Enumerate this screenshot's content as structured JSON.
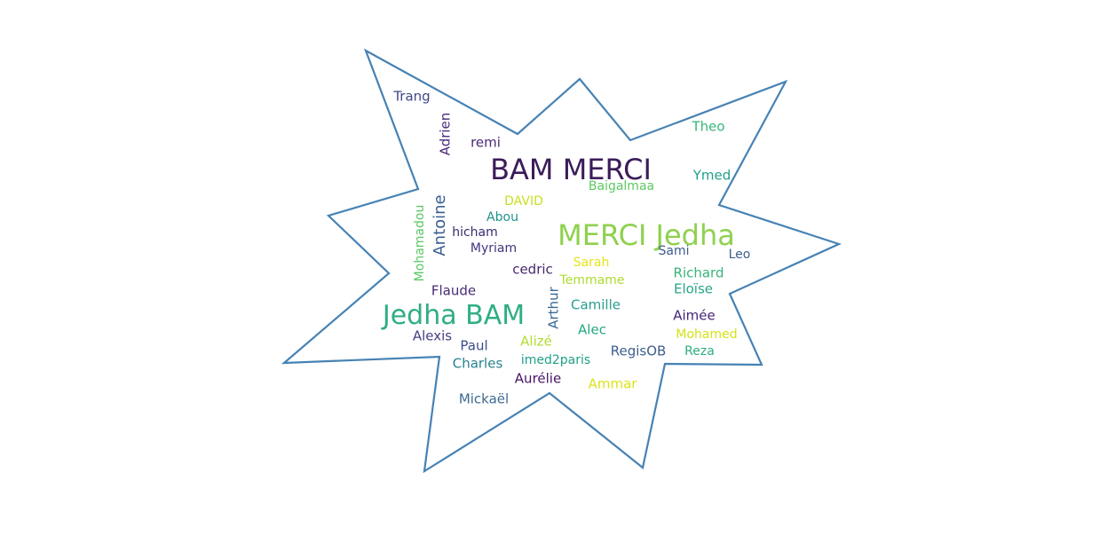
{
  "cloud": {
    "outline_color": "#4682b4",
    "words": [
      {
        "text": "MERCI Jedha",
        "color": "#8fd14f"
      },
      {
        "text": "BAM MERCI",
        "color": "#3b1c5a"
      },
      {
        "text": "Jedha BAM",
        "color": "#2fae83"
      },
      {
        "text": "Antoine",
        "color": "#3a5f8f"
      },
      {
        "text": "Adrien",
        "color": "#4a2a7a"
      },
      {
        "text": "Mohamadou",
        "color": "#5ac864"
      },
      {
        "text": "Arthur",
        "color": "#3b6a94"
      },
      {
        "text": "Trang",
        "color": "#3e4a89"
      },
      {
        "text": "remi",
        "color": "#482878"
      },
      {
        "text": "Theo",
        "color": "#35b779"
      },
      {
        "text": "Ymed",
        "color": "#1f9e89"
      },
      {
        "text": "Baigalmaa",
        "color": "#5ec962"
      },
      {
        "text": "DAVID",
        "color": "#c8e020"
      },
      {
        "text": "Abou",
        "color": "#21918c"
      },
      {
        "text": "hicham",
        "color": "#3b2a6e"
      },
      {
        "text": "Myriam",
        "color": "#44347e"
      },
      {
        "text": "Sami",
        "color": "#3b5b8c"
      },
      {
        "text": "Leo",
        "color": "#3c5f8f"
      },
      {
        "text": "cedric",
        "color": "#46276f"
      },
      {
        "text": "Sarah",
        "color": "#e5e419"
      },
      {
        "text": "Temmame",
        "color": "#addc30"
      },
      {
        "text": "Richard",
        "color": "#3ab37a"
      },
      {
        "text": "Eloïse",
        "color": "#28a486"
      },
      {
        "text": "Flaude",
        "color": "#482b76"
      },
      {
        "text": "Camille",
        "color": "#2a9d8f"
      },
      {
        "text": "Aimée",
        "color": "#45237a"
      },
      {
        "text": "Alexis",
        "color": "#433e85"
      },
      {
        "text": "Paul",
        "color": "#3a4d8b"
      },
      {
        "text": "Alizé",
        "color": "#b0dd2f"
      },
      {
        "text": "Alec",
        "color": "#22a884"
      },
      {
        "text": "Mohamed",
        "color": "#d5e21a"
      },
      {
        "text": "RegisOB",
        "color": "#3d5d8c"
      },
      {
        "text": "Reza",
        "color": "#2fae7d"
      },
      {
        "text": "Charles",
        "color": "#26828e"
      },
      {
        "text": "imed2paris",
        "color": "#1fa088"
      },
      {
        "text": "Aurélie",
        "color": "#471365"
      },
      {
        "text": "Ammar",
        "color": "#dde318"
      },
      {
        "text": "Mickaël",
        "color": "#3e6a90"
      }
    ]
  }
}
